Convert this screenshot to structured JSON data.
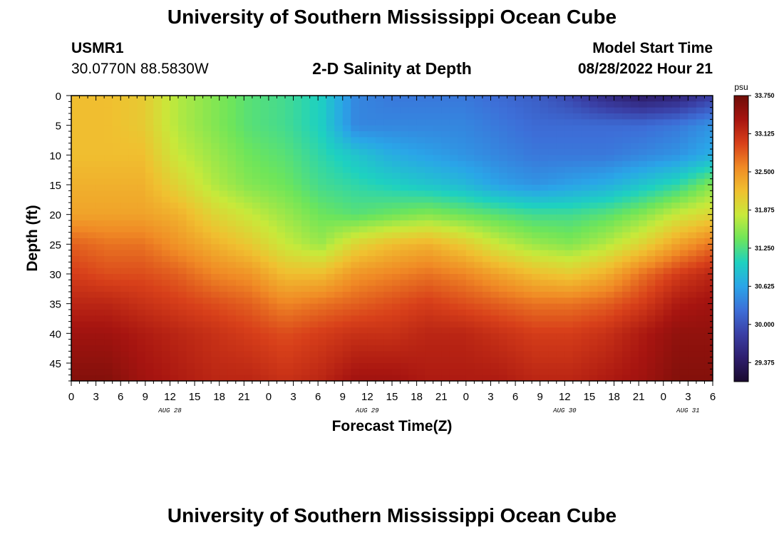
{
  "header": {
    "title": "University of Southern Mississippi Ocean Cube",
    "station_id": "USMR1",
    "station_coords": "30.0770N  88.5830W",
    "chart_title": "2-D Salinity at Depth",
    "model_start_label": "Model Start Time",
    "model_start_value": "08/28/2022 Hour 21"
  },
  "footer": {
    "title": "University of Southern Mississippi Ocean Cube"
  },
  "chart_data": {
    "type": "heatmap",
    "title": "2-D Salinity at Depth",
    "xlabel": "Forecast Time(Z)",
    "ylabel": "Depth (ft)",
    "x_tick_labels": [
      "0",
      "3",
      "6",
      "9",
      "12",
      "15",
      "18",
      "21",
      "0",
      "3",
      "6",
      "9",
      "12",
      "15",
      "18",
      "21",
      "0",
      "3",
      "6",
      "9",
      "12",
      "15",
      "18",
      "21",
      "0",
      "3",
      "6"
    ],
    "x_date_labels": [
      {
        "label": "AUG 28",
        "tick_index": 4
      },
      {
        "label": "AUG 29",
        "tick_index": 12
      },
      {
        "label": "AUG 30",
        "tick_index": 20
      },
      {
        "label": "AUG 31",
        "tick_index": 25
      }
    ],
    "y_tick_labels": [
      "0",
      "5",
      "10",
      "15",
      "20",
      "25",
      "30",
      "35",
      "40",
      "45"
    ],
    "ylim": [
      48,
      0
    ],
    "colorbar": {
      "unit": "psu",
      "range": [
        29.0625,
        33.75
      ],
      "tick_labels": [
        "33.750",
        "33.125",
        "32.500",
        "31.875",
        "31.250",
        "30.625",
        "30.000",
        "29.375"
      ],
      "colors": [
        "#1a0a2e",
        "#2e1e6e",
        "#3a3fa5",
        "#3d6fd8",
        "#2aa5e8",
        "#1ed1c0",
        "#6ee55a",
        "#c8e93a",
        "#f0c030",
        "#f08a25",
        "#d8401a",
        "#a61410",
        "#6e0e08"
      ]
    },
    "description_fields": {
      "x_range_hours": [
        0,
        78
      ],
      "depth_range_ft": [
        0,
        48
      ],
      "rows": [
        {
          "depth_ft": 0,
          "salinity": [
            32.2,
            32.2,
            32.1,
            31.7,
            31.5,
            31.3,
            31.2,
            31.0,
            30.4,
            30.3,
            30.3,
            30.3,
            30.2,
            30.1,
            29.9,
            29.6,
            29.4,
            29.5,
            29.8
          ]
        },
        {
          "depth_ft": 5,
          "salinity": [
            32.2,
            32.2,
            32.1,
            31.7,
            31.5,
            31.3,
            31.2,
            31.0,
            30.4,
            30.4,
            30.4,
            30.4,
            30.3,
            30.2,
            30.2,
            30.2,
            30.2,
            30.3,
            30.5
          ]
        },
        {
          "depth_ft": 10,
          "salinity": [
            32.2,
            32.2,
            32.2,
            31.8,
            31.6,
            31.4,
            31.3,
            31.1,
            30.9,
            30.7,
            30.6,
            30.5,
            30.4,
            30.3,
            30.3,
            30.3,
            30.4,
            30.5,
            30.7
          ]
        },
        {
          "depth_ft": 15,
          "salinity": [
            32.3,
            32.3,
            32.3,
            32.0,
            31.7,
            31.5,
            31.4,
            31.2,
            31.1,
            31.0,
            30.9,
            30.8,
            30.6,
            30.5,
            30.6,
            30.7,
            30.9,
            31.1,
            31.5
          ]
        },
        {
          "depth_ft": 20,
          "salinity": [
            32.4,
            32.4,
            32.4,
            32.3,
            32.0,
            31.8,
            31.6,
            31.4,
            31.3,
            31.4,
            31.5,
            31.4,
            31.3,
            31.2,
            31.2,
            31.3,
            31.5,
            31.8,
            32.0
          ]
        },
        {
          "depth_ft": 25,
          "salinity": [
            32.8,
            32.7,
            32.7,
            32.5,
            32.3,
            32.1,
            31.8,
            31.6,
            32.0,
            32.2,
            32.3,
            32.1,
            31.8,
            31.6,
            31.5,
            31.7,
            32.0,
            32.4,
            32.7
          ]
        },
        {
          "depth_ft": 30,
          "salinity": [
            33.0,
            32.9,
            32.9,
            32.8,
            32.6,
            32.5,
            32.2,
            32.2,
            32.5,
            32.6,
            32.7,
            32.6,
            32.4,
            32.2,
            32.1,
            32.3,
            32.7,
            33.0,
            33.2
          ]
        },
        {
          "depth_ft": 35,
          "salinity": [
            33.2,
            33.2,
            33.1,
            33.0,
            32.9,
            32.8,
            32.6,
            32.7,
            32.8,
            32.9,
            33.0,
            32.9,
            32.8,
            32.7,
            32.7,
            32.8,
            33.0,
            33.3,
            33.4
          ]
        },
        {
          "depth_ft": 40,
          "salinity": [
            33.4,
            33.4,
            33.3,
            33.2,
            33.1,
            33.0,
            32.9,
            33.0,
            33.1,
            33.1,
            33.2,
            33.2,
            33.1,
            33.0,
            33.0,
            33.1,
            33.3,
            33.5,
            33.5
          ]
        },
        {
          "depth_ft": 48,
          "salinity": [
            33.6,
            33.6,
            33.4,
            33.3,
            33.2,
            33.2,
            33.1,
            33.2,
            33.4,
            33.4,
            33.3,
            33.3,
            33.3,
            33.2,
            33.2,
            33.3,
            33.4,
            33.6,
            33.6
          ]
        }
      ]
    }
  }
}
